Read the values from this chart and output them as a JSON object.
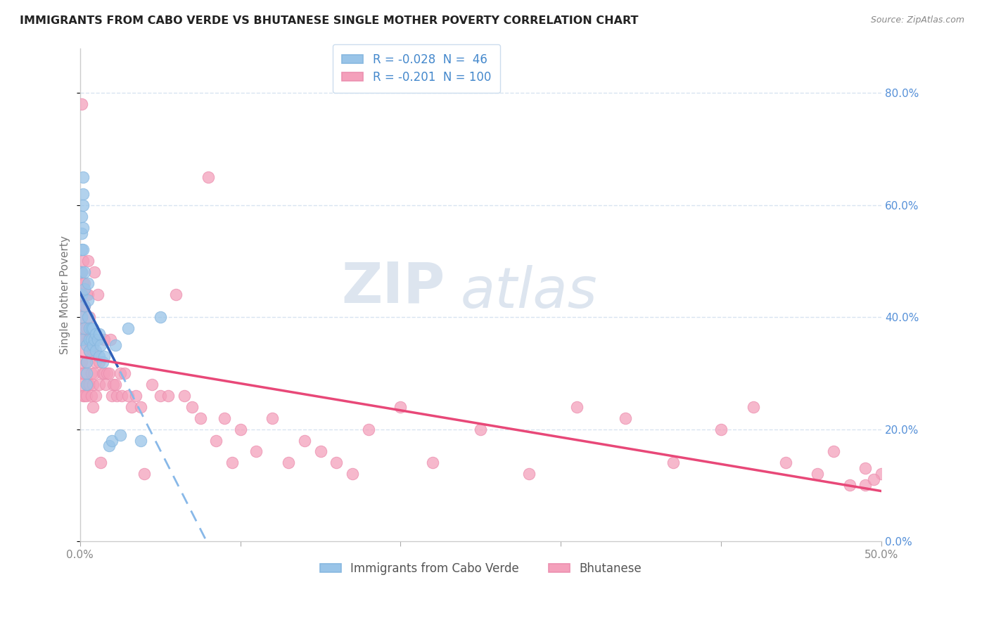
{
  "title": "IMMIGRANTS FROM CABO VERDE VS BHUTANESE SINGLE MOTHER POVERTY CORRELATION CHART",
  "source": "Source: ZipAtlas.com",
  "ylabel": "Single Mother Poverty",
  "xmin": 0.0,
  "xmax": 0.5,
  "ymin": 0.0,
  "ymax": 0.88,
  "cabo_verde_color": "#99c4e8",
  "cabo_verde_edge": "#88b8e0",
  "bhutanese_color": "#f4a0bb",
  "bhutanese_edge": "#ec90b0",
  "cabo_verde_line_solid_color": "#3060b8",
  "cabo_verde_line_dash_color": "#88b8e8",
  "bhutanese_line_color": "#e84878",
  "watermark_zip": "ZIP",
  "watermark_atlas": "atlas",
  "watermark_color": "#dde5ef",
  "grid_color": "#d8e4f0",
  "cabo_verde_R": -0.028,
  "cabo_verde_N": 46,
  "bhutanese_R": -0.201,
  "bhutanese_N": 100,
  "cabo_verde_line_x_end_solid": 0.025,
  "cabo_verde_x": [
    0.001,
    0.001,
    0.001,
    0.001,
    0.001,
    0.001,
    0.001,
    0.002,
    0.002,
    0.002,
    0.002,
    0.002,
    0.003,
    0.003,
    0.003,
    0.003,
    0.004,
    0.004,
    0.004,
    0.004,
    0.005,
    0.005,
    0.005,
    0.006,
    0.006,
    0.006,
    0.007,
    0.007,
    0.008,
    0.008,
    0.009,
    0.01,
    0.01,
    0.011,
    0.012,
    0.012,
    0.013,
    0.014,
    0.015,
    0.018,
    0.02,
    0.022,
    0.025,
    0.03,
    0.038,
    0.05
  ],
  "cabo_verde_y": [
    0.58,
    0.55,
    0.52,
    0.48,
    0.44,
    0.4,
    0.36,
    0.65,
    0.62,
    0.6,
    0.56,
    0.52,
    0.48,
    0.45,
    0.42,
    0.38,
    0.35,
    0.32,
    0.3,
    0.28,
    0.46,
    0.43,
    0.4,
    0.38,
    0.36,
    0.34,
    0.38,
    0.36,
    0.38,
    0.35,
    0.36,
    0.37,
    0.34,
    0.36,
    0.37,
    0.33,
    0.35,
    0.32,
    0.33,
    0.17,
    0.18,
    0.35,
    0.19,
    0.38,
    0.18,
    0.4
  ],
  "bhutanese_x": [
    0.001,
    0.001,
    0.001,
    0.001,
    0.001,
    0.001,
    0.001,
    0.002,
    0.002,
    0.002,
    0.002,
    0.002,
    0.002,
    0.002,
    0.003,
    0.003,
    0.003,
    0.003,
    0.003,
    0.004,
    0.004,
    0.004,
    0.004,
    0.005,
    0.005,
    0.005,
    0.005,
    0.006,
    0.006,
    0.006,
    0.007,
    0.007,
    0.007,
    0.008,
    0.008,
    0.008,
    0.009,
    0.009,
    0.01,
    0.01,
    0.011,
    0.012,
    0.012,
    0.013,
    0.014,
    0.015,
    0.015,
    0.016,
    0.017,
    0.018,
    0.019,
    0.02,
    0.021,
    0.022,
    0.023,
    0.025,
    0.026,
    0.028,
    0.03,
    0.032,
    0.035,
    0.038,
    0.04,
    0.045,
    0.05,
    0.055,
    0.06,
    0.065,
    0.07,
    0.075,
    0.08,
    0.085,
    0.09,
    0.095,
    0.1,
    0.11,
    0.12,
    0.13,
    0.14,
    0.15,
    0.16,
    0.17,
    0.18,
    0.2,
    0.22,
    0.25,
    0.28,
    0.31,
    0.34,
    0.37,
    0.4,
    0.42,
    0.44,
    0.46,
    0.47,
    0.48,
    0.49,
    0.5,
    0.49,
    0.495
  ],
  "bhutanese_y": [
    0.78,
    0.48,
    0.44,
    0.4,
    0.36,
    0.32,
    0.28,
    0.5,
    0.46,
    0.42,
    0.38,
    0.34,
    0.3,
    0.26,
    0.46,
    0.42,
    0.36,
    0.3,
    0.26,
    0.44,
    0.38,
    0.32,
    0.26,
    0.5,
    0.44,
    0.36,
    0.28,
    0.4,
    0.34,
    0.28,
    0.36,
    0.3,
    0.26,
    0.34,
    0.28,
    0.24,
    0.48,
    0.3,
    0.32,
    0.26,
    0.44,
    0.32,
    0.28,
    0.14,
    0.3,
    0.36,
    0.3,
    0.28,
    0.3,
    0.3,
    0.36,
    0.26,
    0.28,
    0.28,
    0.26,
    0.3,
    0.26,
    0.3,
    0.26,
    0.24,
    0.26,
    0.24,
    0.12,
    0.28,
    0.26,
    0.26,
    0.44,
    0.26,
    0.24,
    0.22,
    0.65,
    0.18,
    0.22,
    0.14,
    0.2,
    0.16,
    0.22,
    0.14,
    0.18,
    0.16,
    0.14,
    0.12,
    0.2,
    0.24,
    0.14,
    0.2,
    0.12,
    0.24,
    0.22,
    0.14,
    0.2,
    0.24,
    0.14,
    0.12,
    0.16,
    0.1,
    0.13,
    0.12,
    0.1,
    0.11
  ]
}
